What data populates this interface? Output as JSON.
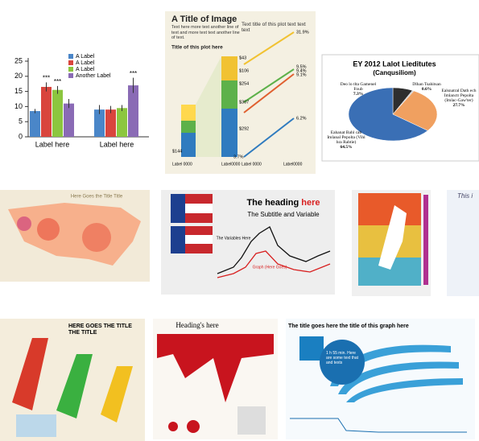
{
  "bar_thumb": {
    "type": "bar",
    "categories": [
      "Label here",
      "Label here"
    ],
    "series": [
      {
        "name": "A Label",
        "color": "#4a86c8",
        "values": [
          8.5,
          9
        ],
        "errors": [
          0.7,
          1.5
        ]
      },
      {
        "name": "A Label",
        "color": "#d9453d",
        "values": [
          16.5,
          9
        ],
        "errors": [
          1.5,
          1.2
        ]
      },
      {
        "name": "A Label",
        "color": "#8cc63f",
        "values": [
          15.5,
          9.5
        ],
        "errors": [
          1.3,
          1
        ]
      },
      {
        "name": "Another Label",
        "color": "#8a6bb5",
        "values": [
          11,
          17
        ],
        "errors": [
          1.5,
          2.5
        ]
      }
    ],
    "annotations": [
      "***",
      "***",
      "***"
    ],
    "ylim": [
      0,
      25
    ],
    "yticks": [
      0,
      5,
      10,
      15,
      20,
      25
    ]
  },
  "infographic": {
    "title": "A Title of Image",
    "text": "Text here more text another line of text and more text text another line of text.",
    "plot_title": "Title of this plot here",
    "right_title": "Text title of this plot text text text",
    "left_labels": [
      "$43",
      "$106",
      "$254",
      "$307",
      "$292",
      "$144"
    ],
    "right_labels": [
      "31.9%",
      "9.5%",
      "9.4%",
      "9.1%",
      "6.2%",
      "3.7%"
    ],
    "axis_labels": [
      "Label 0000",
      "Label0000",
      "Label 0000",
      "Label0000"
    ]
  },
  "pie_thumb": {
    "type": "pie",
    "title": "EY 2012 Lalot Lieditutes",
    "subtitle": "(Canqusiliom)",
    "labels": [
      "Deo lo tlta Gamenel Foub",
      "Dlhan Tsahitsan",
      "Ealsnatral Dath ech Imlanctr Pepolta (Imlac-Gaw'ter)",
      "Eahanat Bahl cab Imlanal Pepolta (Vihl hra Rabtie)"
    ],
    "values": [
      7.3,
      0.6,
      27.7,
      64.5
    ],
    "value_labels": [
      "7.3%",
      "0.6%",
      "27.7%",
      "64.5%"
    ],
    "colors": [
      "#2e2e2e",
      "#c8c8c8",
      "#f0a060",
      "#3a6fb5"
    ]
  },
  "map_thumb": {
    "title": "Here Goes the Title Title"
  },
  "flag_thumb": {
    "heading": "The heading",
    "heading_em": "here",
    "subtitle": "The Subtitle and Variable",
    "labels": [
      "The Variables Here",
      "Graph (Here Goes)"
    ]
  },
  "partial_thumb": {
    "title": "This i"
  },
  "bars3d_thumb": {
    "title": "HERE GOES THE TITLE THE TITLE"
  },
  "red_thumb": {
    "title": "Heading's here"
  },
  "blue_thumb": {
    "title": "The title goes here the title of this graph here",
    "callout": "1 h 55 min. Here are some text that and texts"
  }
}
